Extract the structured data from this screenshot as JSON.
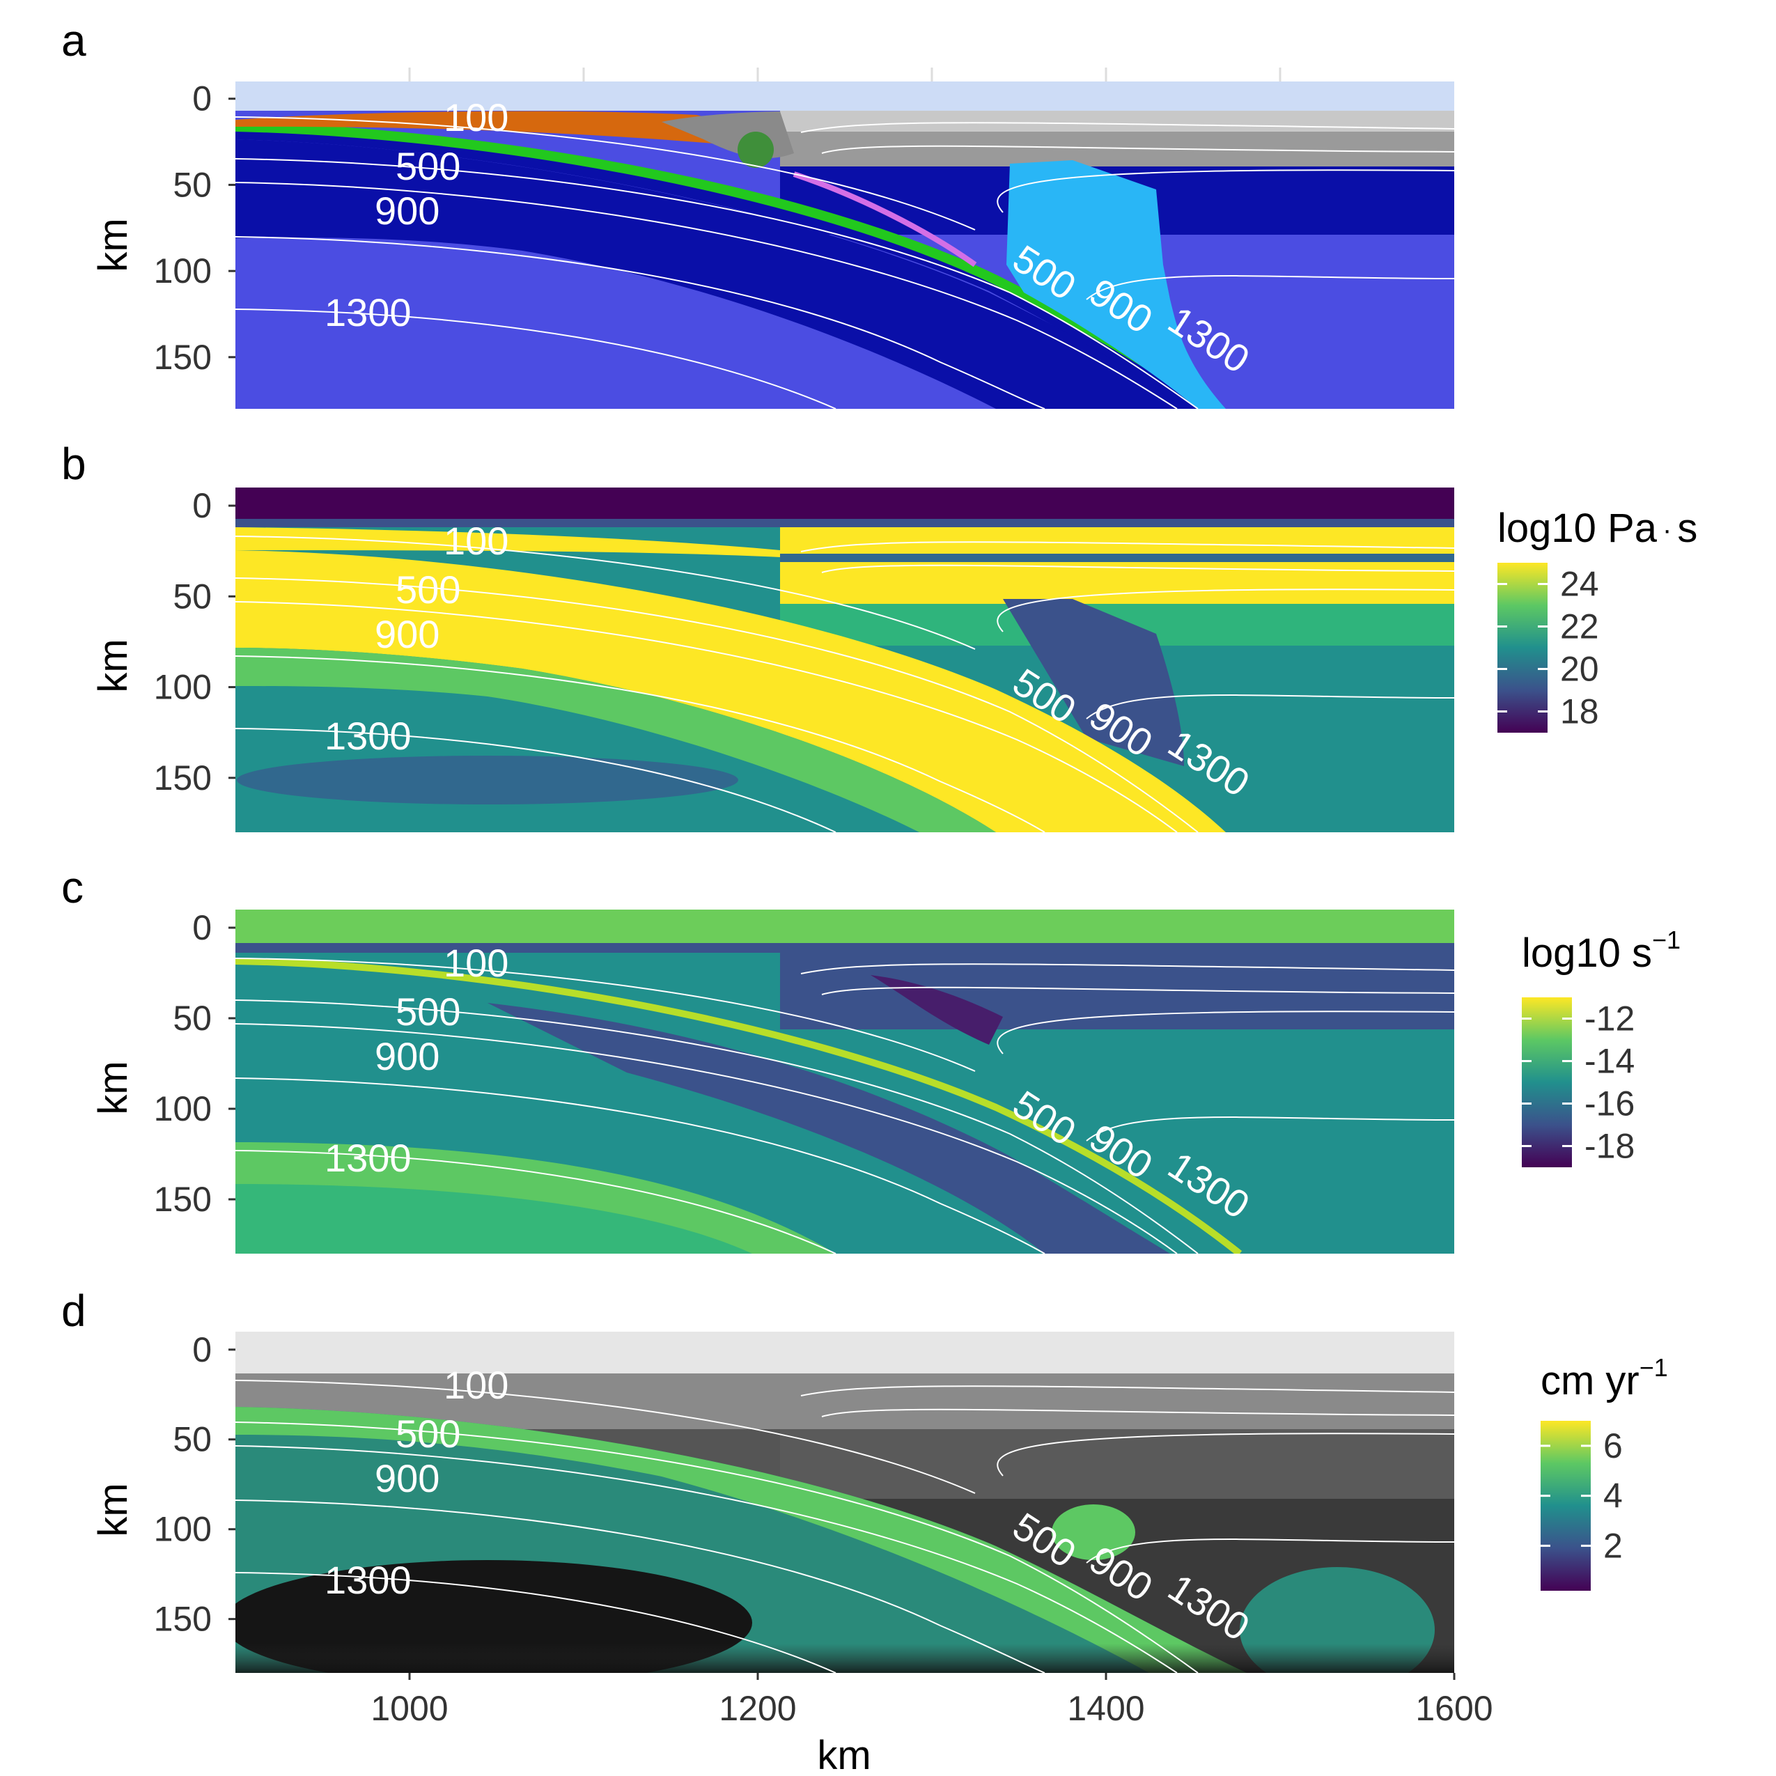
{
  "chart_data": [
    {
      "panel": "a",
      "type": "heatmap",
      "kind": "lithology-composition",
      "xlim": [
        900,
        1600
      ],
      "ylim": [
        180,
        -10
      ],
      "ylabel": "km",
      "ytick_labels": [
        "0",
        "50",
        "100",
        "150"
      ],
      "yticks": [
        0,
        50,
        100,
        150
      ],
      "isotherm_labels": [
        "100",
        "500",
        "900",
        "1300",
        "500",
        "900",
        "1300"
      ],
      "legend": null
    },
    {
      "panel": "b",
      "type": "heatmap",
      "quantity": "viscosity",
      "xlim": [
        900,
        1600
      ],
      "ylim": [
        180,
        -10
      ],
      "ylabel": "km",
      "ytick_labels": [
        "0",
        "50",
        "100",
        "150"
      ],
      "yticks": [
        0,
        50,
        100,
        150
      ],
      "isotherm_labels": [
        "100",
        "500",
        "900",
        "1300",
        "500",
        "900",
        "1300"
      ],
      "legend": {
        "title_main": "log10 Pa",
        "title_dot": "·",
        "title_tail": "s",
        "ticks": [
          "24",
          "22",
          "20",
          "18"
        ],
        "tick_values": [
          24,
          22,
          20,
          18
        ],
        "range": [
          17,
          25
        ]
      }
    },
    {
      "panel": "c",
      "type": "heatmap",
      "quantity": "strain rate",
      "xlim": [
        900,
        1600
      ],
      "ylim": [
        180,
        -10
      ],
      "ylabel": "km",
      "ytick_labels": [
        "0",
        "50",
        "100",
        "150"
      ],
      "yticks": [
        0,
        50,
        100,
        150
      ],
      "isotherm_labels": [
        "100",
        "500",
        "900",
        "1300",
        "500",
        "900",
        "1300"
      ],
      "legend": {
        "title_main": "log10 s",
        "title_sup": "−1",
        "ticks": [
          "-12",
          "-14",
          "-16",
          "-18"
        ],
        "tick_values": [
          -12,
          -14,
          -16,
          -18
        ],
        "range": [
          -19,
          -11
        ]
      }
    },
    {
      "panel": "d",
      "type": "heatmap",
      "quantity": "velocity",
      "xlim": [
        900,
        1600
      ],
      "ylim": [
        180,
        -10
      ],
      "xlabel": "km",
      "ylabel": "km",
      "xtick_labels": [
        "1000",
        "1200",
        "1400",
        "1600"
      ],
      "xticks": [
        1000,
        1200,
        1400,
        1600
      ],
      "ytick_labels": [
        "0",
        "50",
        "100",
        "150"
      ],
      "yticks": [
        0,
        50,
        100,
        150
      ],
      "isotherm_labels": [
        "100",
        "500",
        "900",
        "1300",
        "500",
        "900",
        "1300"
      ],
      "legend": {
        "title_main": "cm yr",
        "title_sup": "−1",
        "ticks": [
          "6",
          "4",
          "2"
        ],
        "tick_values": [
          6,
          4,
          2
        ],
        "range": [
          0.2,
          7
        ]
      }
    }
  ],
  "colors": {
    "lith_air": "#cddcf6",
    "lith_sediment_orange": "#d6680e",
    "lith_crust_gray": "#9a9a9a",
    "lith_crust_lightgray": "#c8c8c8",
    "lith_oceanic_green": "#22c81e",
    "lith_lithosphere": "#0a0fa8",
    "lith_mantle": "#4b4de2",
    "lith_plume": "#29b6f6",
    "lith_serpentine": "#d46fe6",
    "viridis_dark": "#440154",
    "viridis_blue": "#31688e",
    "viridis_teal": "#21908d",
    "viridis_green": "#35b779",
    "viridis_yellow": "#fde725",
    "isotherm": "#ffffff"
  }
}
